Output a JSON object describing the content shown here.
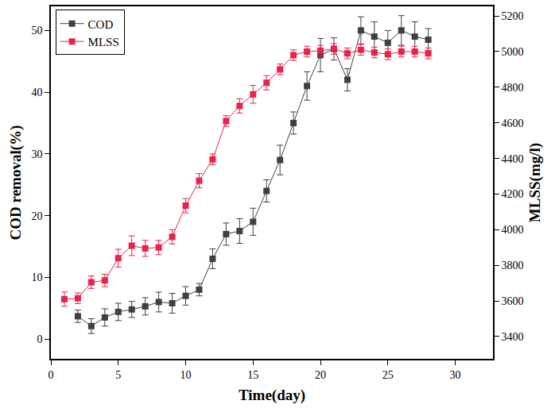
{
  "chart_data": {
    "type": "line",
    "x_label": "Time(day)",
    "y_label": "COD removal(%)",
    "y2_label": "MLSS(mg/l)",
    "xlim": [
      0,
      32.8
    ],
    "xticks": [
      0,
      5,
      10,
      15,
      20,
      25,
      30
    ],
    "ylim": [
      -3.2,
      53.9
    ],
    "yticks": [
      0,
      10,
      20,
      30,
      40,
      50
    ],
    "y2lim": [
      3275,
      5254
    ],
    "y2ticks": [
      3400,
      3600,
      3800,
      4000,
      4200,
      4400,
      4600,
      4800,
      5000,
      5200
    ],
    "grid": false,
    "legend": "top-left",
    "series": [
      {
        "name": "COD",
        "color": "#404040",
        "marker": "square",
        "line_style": "solid",
        "axis": "y",
        "x": [
          2,
          3,
          4,
          5,
          6,
          7,
          8,
          9,
          10,
          11,
          12,
          13,
          14,
          15,
          16,
          17,
          18,
          19,
          20,
          21,
          22,
          23,
          24,
          25,
          26,
          27,
          28
        ],
        "values": [
          3.7,
          2.1,
          3.5,
          4.4,
          4.8,
          5.3,
          6.0,
          5.8,
          7.0,
          8.0,
          13.0,
          17.0,
          17.5,
          19.0,
          24.0,
          29.0,
          35.0,
          41.0,
          46.0,
          47.0,
          42.0,
          50.0,
          49.0,
          48.0,
          50.0,
          49.0,
          48.5
        ],
        "error": [
          1.0,
          1.2,
          1.4,
          1.4,
          1.3,
          1.4,
          1.6,
          1.6,
          1.5,
          1.0,
          1.6,
          1.8,
          2.0,
          2.2,
          1.8,
          2.4,
          1.8,
          2.3,
          2.7,
          1.8,
          1.8,
          2.2,
          2.4,
          2.0,
          2.4,
          2.4,
          1.8
        ]
      },
      {
        "name": "MLSS",
        "color": "#e8224a",
        "marker": "square",
        "line_style": "solid",
        "axis": "y2",
        "x": [
          1,
          2,
          3,
          4,
          5,
          6,
          7,
          8,
          9,
          10,
          11,
          12,
          13,
          14,
          15,
          16,
          17,
          18,
          19,
          20,
          21,
          22,
          23,
          24,
          25,
          26,
          27,
          28
        ],
        "values": [
          3610,
          3615,
          3705,
          3715,
          3840,
          3910,
          3895,
          3900,
          3960,
          4135,
          4275,
          4395,
          4610,
          4695,
          4760,
          4825,
          4900,
          4980,
          5000,
          5005,
          5015,
          4990,
          5010,
          4995,
          4985,
          5000,
          5000,
          4990
        ],
        "error": [
          40,
          30,
          35,
          35,
          50,
          55,
          45,
          40,
          40,
          40,
          40,
          30,
          30,
          40,
          50,
          40,
          30,
          30,
          30,
          30,
          30,
          30,
          30,
          30,
          30,
          30,
          30,
          30
        ]
      }
    ]
  }
}
